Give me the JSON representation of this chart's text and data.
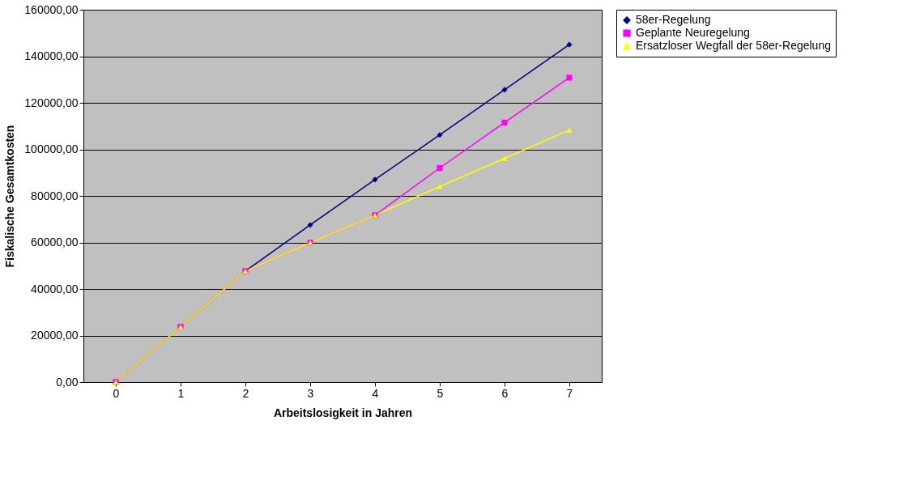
{
  "chart_data": {
    "type": "line",
    "xlabel": "Arbeitslosigkeit in Jahren",
    "ylabel": "Fiskalische Gesamtkosten",
    "categories": [
      "0",
      "1",
      "2",
      "3",
      "4",
      "5",
      "6",
      "7"
    ],
    "series": [
      {
        "name": "58er-Regelung",
        "color": "#000080",
        "marker": "diamond",
        "values": [
          0,
          23800,
          47700,
          67500,
          87000,
          106200,
          125600,
          145000
        ]
      },
      {
        "name": "Geplante Neuregelung",
        "color": "#ff00ff",
        "marker": "square",
        "values": [
          0,
          23800,
          47700,
          59900,
          71700,
          92000,
          111500,
          130800
        ]
      },
      {
        "name": "Ersatzloser Wegfall der 58er-Regelung",
        "color": "#ffff00",
        "marker": "triangle",
        "values": [
          0,
          23800,
          47700,
          59900,
          71700,
          84000,
          96100,
          108300
        ]
      }
    ],
    "ylim": [
      0,
      160000
    ],
    "yticks": [
      {
        "value": 0,
        "label": "0,00"
      },
      {
        "value": 20000,
        "label": "20000,00"
      },
      {
        "value": 40000,
        "label": "40000,00"
      },
      {
        "value": 60000,
        "label": "60000,00"
      },
      {
        "value": 80000,
        "label": "80000,00"
      },
      {
        "value": 100000,
        "label": "100000,00"
      },
      {
        "value": 120000,
        "label": "120000,00"
      },
      {
        "value": 140000,
        "label": "140000,00"
      },
      {
        "value": 160000,
        "label": "160000,00"
      }
    ],
    "grid": "y",
    "legend": "right",
    "line_style": "solid"
  }
}
